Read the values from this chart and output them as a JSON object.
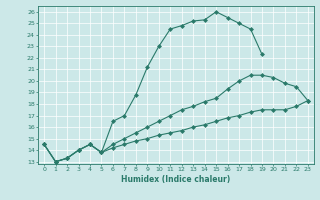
{
  "xlabel": "Humidex (Indice chaleur)",
  "bg_color": "#cce8e8",
  "line_color": "#2a7a6a",
  "grid_color": "#b0d0d0",
  "xlim": [
    -0.5,
    23.5
  ],
  "ylim": [
    12.8,
    26.5
  ],
  "xticks": [
    0,
    1,
    2,
    3,
    4,
    5,
    6,
    7,
    8,
    9,
    10,
    11,
    12,
    13,
    14,
    15,
    16,
    17,
    18,
    19,
    20,
    21,
    22,
    23
  ],
  "yticks": [
    13,
    14,
    15,
    16,
    17,
    18,
    19,
    20,
    21,
    22,
    23,
    24,
    25,
    26
  ],
  "series": [
    {
      "x": [
        0,
        1,
        2,
        3,
        4,
        5,
        6,
        7,
        8,
        9,
        10,
        11,
        12,
        13,
        14,
        15,
        16,
        17,
        18,
        19
      ],
      "y": [
        14.5,
        13.0,
        13.3,
        14.0,
        14.5,
        13.8,
        16.5,
        17.0,
        18.8,
        21.2,
        23.0,
        24.5,
        24.8,
        25.2,
        25.3,
        26.0,
        25.5,
        25.0,
        24.5,
        22.3
      ]
    },
    {
      "x": [
        0,
        1,
        2,
        3,
        4,
        5,
        6,
        7,
        8,
        9,
        10,
        11,
        12,
        13,
        14,
        15,
        16,
        17,
        18,
        19,
        20,
        21,
        22,
        23
      ],
      "y": [
        14.5,
        13.0,
        13.3,
        14.0,
        14.5,
        13.8,
        14.5,
        15.0,
        15.5,
        16.0,
        16.5,
        17.0,
        17.5,
        17.8,
        18.2,
        18.5,
        19.3,
        20.0,
        20.5,
        20.5,
        20.3,
        19.8,
        19.5,
        18.3
      ]
    },
    {
      "x": [
        0,
        1,
        2,
        3,
        4,
        5,
        6,
        7,
        8,
        9,
        10,
        11,
        12,
        13,
        14,
        15,
        16,
        17,
        18,
        19,
        20,
        21,
        22,
        23
      ],
      "y": [
        14.5,
        13.0,
        13.3,
        14.0,
        14.5,
        13.8,
        14.2,
        14.5,
        14.8,
        15.0,
        15.3,
        15.5,
        15.7,
        16.0,
        16.2,
        16.5,
        16.8,
        17.0,
        17.3,
        17.5,
        17.5,
        17.5,
        17.8,
        18.3
      ]
    }
  ]
}
